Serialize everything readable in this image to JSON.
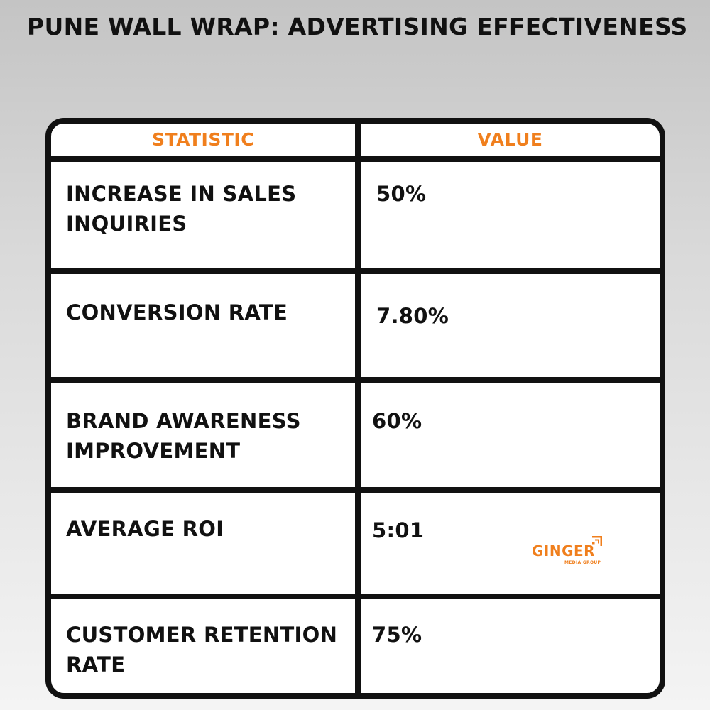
{
  "title": "PUNE WALL WRAP: ADVERTISING EFFECTIVENESS",
  "table": {
    "headers": {
      "statistic": "STATISTIC",
      "value": "VALUE"
    },
    "rows": [
      {
        "statistic": "INCREASE IN SALES INQUIRIES",
        "value": "50%"
      },
      {
        "statistic": "CONVERSION RATE",
        "value": "7.80%"
      },
      {
        "statistic": "BRAND AWARENESS IMPROVEMENT",
        "value": "60%"
      },
      {
        "statistic": "AVERAGE ROI",
        "value": "5:01"
      },
      {
        "statistic": "CUSTOMER RETENTION RATE",
        "value": "75%"
      }
    ]
  },
  "logo": {
    "name": "GINGER",
    "tagline": "MEDIA GROUP",
    "icon": "ginger-mark-icon"
  },
  "colors": {
    "accent": "#f07f1d",
    "text": "#111111",
    "border": "#111111"
  }
}
